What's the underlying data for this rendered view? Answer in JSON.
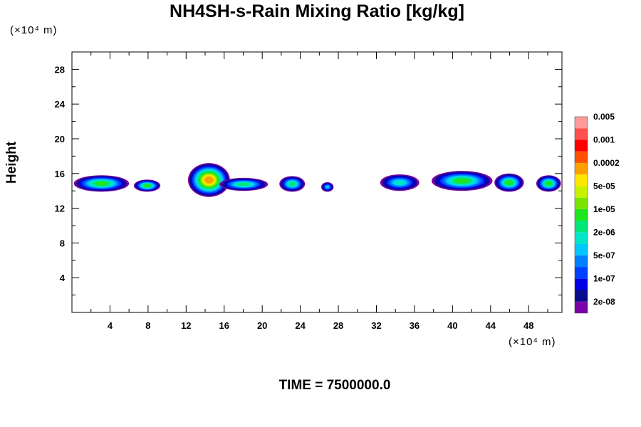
{
  "chart_data": {
    "type": "heatmap",
    "title": "NH4SH-s-Rain Mixing Ratio [kg/kg]",
    "ylabel": "Height",
    "y_unit_label": "(×10⁴ m)",
    "x_unit_label": "(×10⁴ m)",
    "footer": "TIME = 7500000.0",
    "xlim": [
      0,
      51.5
    ],
    "ylim": [
      0,
      30
    ],
    "x_ticks": [
      "4",
      "8",
      "12",
      "16",
      "20",
      "24",
      "28",
      "32",
      "36",
      "40",
      "44",
      "48"
    ],
    "y_ticks": [
      "4",
      "8",
      "12",
      "16",
      "20",
      "24",
      "28"
    ],
    "colorbar": {
      "colors": [
        "#7a00a8",
        "#0a0a8c",
        "#0000e6",
        "#0040ff",
        "#0080ff",
        "#00c8ff",
        "#00e6c8",
        "#00e678",
        "#1ee61e",
        "#78e600",
        "#c8f000",
        "#ffe600",
        "#ffa000",
        "#ff5000",
        "#ff0000",
        "#ff5050",
        "#ff9a9a"
      ],
      "labels": [
        {
          "level": 1,
          "text": "2e-08"
        },
        {
          "level": 3,
          "text": "1e-07"
        },
        {
          "level": 5,
          "text": "5e-07"
        },
        {
          "level": 7,
          "text": "2e-06"
        },
        {
          "level": 9,
          "text": "1e-05"
        },
        {
          "level": 11,
          "text": "5e-05"
        },
        {
          "level": 13,
          "text": "0.0002"
        },
        {
          "level": 15,
          "text": "0.001"
        },
        {
          "level": 17,
          "text": "0.005"
        }
      ]
    },
    "cells": [
      {
        "x": 0.2,
        "x2": 6.0,
        "y": 13.9,
        "y2": 15.8,
        "max_level": 9
      },
      {
        "x": 6.5,
        "x2": 9.3,
        "y": 13.9,
        "y2": 15.3,
        "max_level": 9
      },
      {
        "x": 12.2,
        "x2": 16.6,
        "y": 13.3,
        "y2": 17.2,
        "max_level": 13
      },
      {
        "x": 15.5,
        "x2": 20.6,
        "y": 14.0,
        "y2": 15.5,
        "max_level": 8
      },
      {
        "x": 21.8,
        "x2": 24.5,
        "y": 13.9,
        "y2": 15.7,
        "max_level": 8
      },
      {
        "x": 26.2,
        "x2": 27.5,
        "y": 13.9,
        "y2": 15.0,
        "max_level": 6
      },
      {
        "x": 32.4,
        "x2": 36.5,
        "y": 14.0,
        "y2": 15.9,
        "max_level": 7
      },
      {
        "x": 37.8,
        "x2": 44.2,
        "y": 14.0,
        "y2": 16.3,
        "max_level": 9
      },
      {
        "x": 44.4,
        "x2": 47.5,
        "y": 13.9,
        "y2": 16.0,
        "max_level": 9
      },
      {
        "x": 48.8,
        "x2": 51.4,
        "y": 13.9,
        "y2": 15.8,
        "max_level": 9
      }
    ]
  }
}
